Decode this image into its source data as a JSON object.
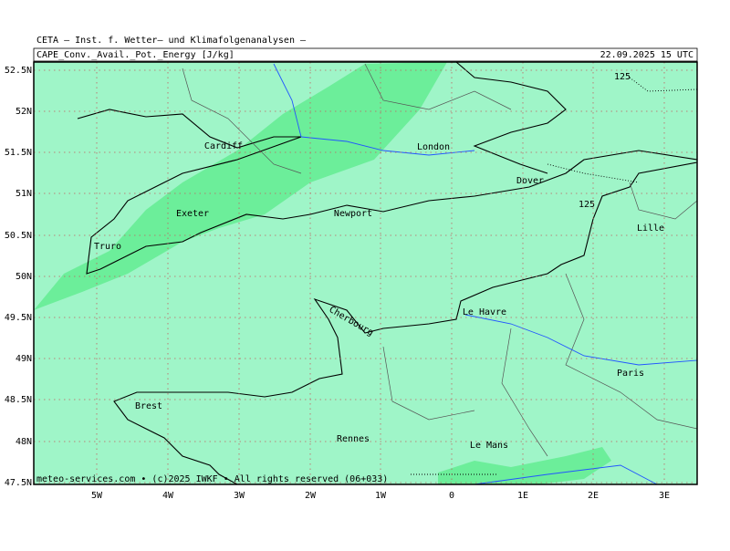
{
  "header": {
    "title": "CETA – Inst. f. Wetter– und Klimafolgenanalysen –",
    "parameter": "CAPE_Conv._Avail._Pot._Energy [J/kg]",
    "valid_time": "22.09.2025 15 UTC"
  },
  "map": {
    "lat_labels": [
      "52.5N",
      "52N",
      "51.5N",
      "51N",
      "50.5N",
      "50N",
      "49.5N",
      "49N",
      "48.5N",
      "48N",
      "47.5N"
    ],
    "lon_labels": [
      "5W",
      "4W",
      "3W",
      "2W",
      "1W",
      "0",
      "1E",
      "2E",
      "3E"
    ],
    "cities": [
      "Cardiff",
      "London",
      "Dover",
      "Exeter",
      "Newport",
      "Truro",
      "Lille",
      "Cherbourg",
      "Le Havre",
      "Paris",
      "Brest",
      "Rennes",
      "Le Mans"
    ],
    "contour_labels": [
      "125",
      "125"
    ],
    "footer": "meteo-services.com • (c)2025 IWKF • All rights reserved (06+033)"
  }
}
